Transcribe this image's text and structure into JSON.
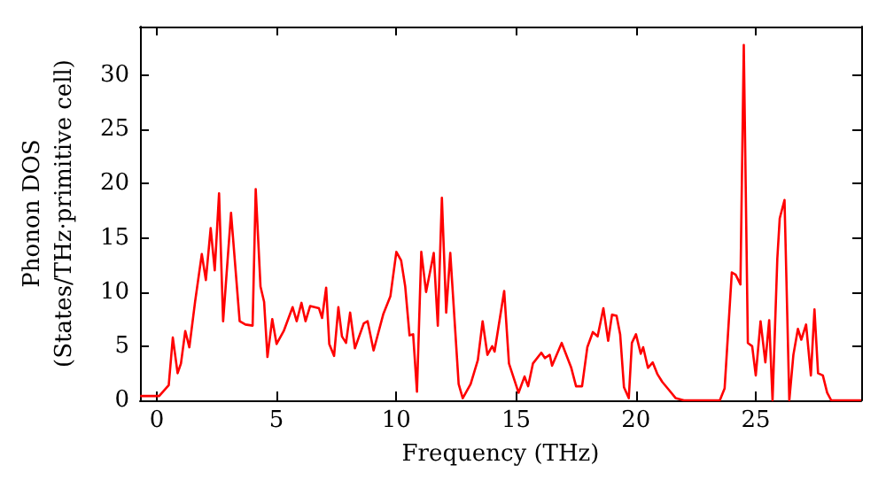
{
  "chart_data": {
    "type": "line",
    "xlabel": "Frequency (THz)",
    "ylabel": "Phonon DOS\n(States/THz·primitive cell)",
    "xlim": [
      -0.7,
      29.4
    ],
    "ylim": [
      0,
      34.5
    ],
    "xticks": [
      0,
      5,
      10,
      15,
      20,
      25
    ],
    "yticks": [
      0,
      5,
      10,
      15,
      20,
      25,
      30
    ],
    "grid": false,
    "marker": "none",
    "line_style": "solid",
    "series": [
      {
        "color": "#ff0000",
        "x": [
          -0.69,
          0.1,
          0.5,
          0.67,
          0.87,
          1.01,
          1.19,
          1.36,
          1.6,
          1.88,
          2.05,
          2.25,
          2.42,
          2.6,
          2.77,
          3.1,
          3.46,
          3.7,
          4.0,
          4.13,
          4.33,
          4.48,
          4.62,
          4.82,
          5.0,
          5.3,
          5.67,
          5.84,
          6.04,
          6.21,
          6.4,
          6.77,
          6.9,
          7.07,
          7.2,
          7.4,
          7.58,
          7.73,
          7.9,
          8.07,
          8.27,
          8.64,
          8.8,
          9.05,
          9.46,
          9.75,
          10.0,
          10.2,
          10.37,
          10.55,
          10.7,
          10.86,
          11.04,
          11.24,
          11.56,
          11.73,
          11.9,
          12.08,
          12.25,
          12.6,
          12.77,
          13.1,
          13.4,
          13.6,
          13.8,
          14.0,
          14.1,
          14.5,
          14.7,
          15.1,
          15.35,
          15.5,
          15.7,
          16.05,
          16.2,
          16.4,
          16.5,
          16.9,
          17.3,
          17.5,
          17.75,
          17.97,
          18.2,
          18.4,
          18.64,
          18.84,
          19.0,
          19.19,
          19.34,
          19.5,
          19.7,
          19.83,
          20.0,
          20.2,
          20.3,
          20.5,
          20.7,
          20.9,
          21.1,
          21.4,
          21.66,
          22.0,
          23.5,
          23.7,
          24.0,
          24.16,
          24.36,
          24.5,
          24.67,
          24.85,
          25.0,
          25.2,
          25.4,
          25.56,
          25.7,
          25.9,
          26.0,
          26.2,
          26.4,
          26.57,
          26.76,
          26.9,
          27.1,
          27.3,
          27.45,
          27.6,
          27.8,
          27.98,
          28.15,
          29.4
        ],
        "values": [
          0.4,
          0.4,
          1.4,
          5.8,
          2.5,
          3.4,
          6.4,
          4.9,
          9.1,
          13.5,
          11.1,
          15.9,
          12.0,
          19.1,
          7.3,
          17.3,
          7.3,
          7.0,
          6.9,
          19.5,
          10.5,
          9.1,
          4.0,
          7.5,
          5.2,
          6.4,
          8.6,
          7.3,
          9.0,
          7.3,
          8.7,
          8.5,
          7.6,
          10.4,
          5.2,
          4.1,
          8.6,
          5.9,
          5.3,
          8.1,
          4.8,
          7.1,
          7.3,
          4.6,
          8.0,
          9.6,
          13.7,
          12.9,
          10.5,
          6.0,
          6.1,
          0.8,
          13.7,
          10.0,
          13.6,
          6.9,
          18.7,
          8.1,
          13.6,
          1.5,
          0.2,
          1.5,
          3.7,
          7.3,
          4.2,
          5.0,
          4.5,
          10.1,
          3.4,
          0.7,
          2.2,
          1.3,
          3.4,
          4.4,
          3.9,
          4.2,
          3.2,
          5.3,
          3.0,
          1.3,
          1.3,
          4.9,
          6.3,
          5.9,
          8.5,
          5.5,
          7.9,
          7.8,
          6.1,
          1.2,
          0.2,
          5.3,
          6.1,
          4.3,
          4.9,
          3.0,
          3.5,
          2.4,
          1.7,
          0.9,
          0.2,
          0,
          0,
          1.1,
          11.8,
          11.6,
          10.7,
          32.8,
          5.3,
          5.0,
          2.3,
          7.3,
          3.5,
          7.4,
          0,
          13.1,
          16.8,
          18.5,
          0,
          4.2,
          6.6,
          5.6,
          7.0,
          2.3,
          8.4,
          2.5,
          2.3,
          0.7,
          0,
          0
        ]
      }
    ]
  }
}
